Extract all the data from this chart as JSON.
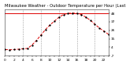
{
  "title": "Milwaukee Weather - Outdoor Temperature per Hour (Last 24 Hours)",
  "hours": [
    0,
    1,
    2,
    3,
    4,
    5,
    6,
    7,
    8,
    9,
    10,
    11,
    12,
    13,
    14,
    15,
    16,
    17,
    18,
    19,
    20,
    21,
    22,
    23
  ],
  "temps": [
    1.0,
    0.8,
    1.0,
    1.5,
    2.0,
    2.5,
    7.0,
    13.0,
    20.0,
    27.0,
    33.0,
    38.0,
    43.0,
    46.5,
    48.0,
    48.5,
    48.0,
    46.5,
    43.0,
    39.0,
    34.0,
    29.0,
    25.0,
    21.0
  ],
  "line_color": "#dd0000",
  "marker_color": "#000000",
  "bg_color": "#ffffff",
  "plot_bg": "#ffffff",
  "grid_color": "#888888",
  "ymin": -7,
  "ymax": 53,
  "yticks": [
    48,
    37,
    26,
    15,
    4,
    -7
  ],
  "xlim_min": 0,
  "xlim_max": 23,
  "title_fontsize": 3.8,
  "tick_fontsize": 3.2,
  "max_line_y": 48.5,
  "max_line_color": "#dd0000",
  "grid_hours": [
    4,
    8,
    12,
    16,
    20
  ]
}
